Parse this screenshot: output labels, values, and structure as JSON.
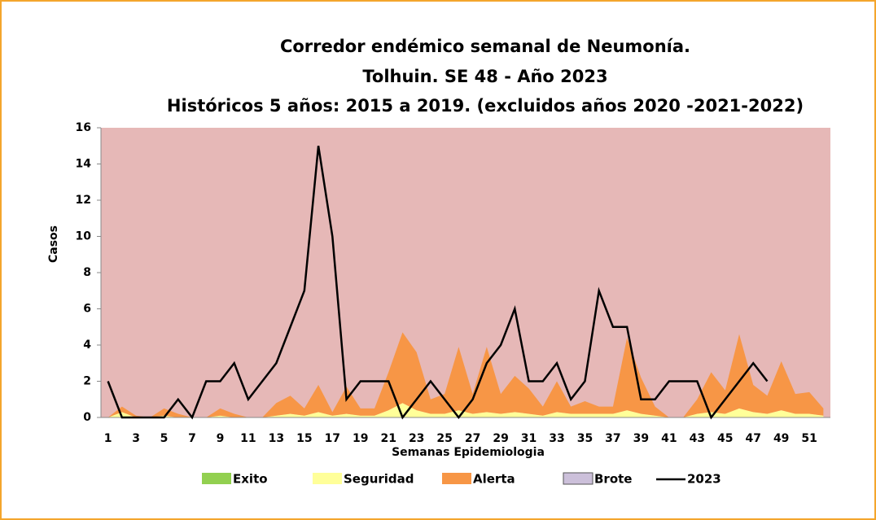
{
  "chart_data": {
    "type": "area",
    "title": [
      "Corredor endémico semanal de Neumonía.",
      "Tolhuin. SE 48 -  Año 2023",
      "Históricos 5 años: 2015 a 2019. (excluidos años 2020 -2021-2022)"
    ],
    "x_label": "Semanas Epidemiologia",
    "y_label": "Casos",
    "categories": [
      "1",
      null,
      "3",
      null,
      "5",
      null,
      "7",
      null,
      "9",
      null,
      "11",
      null,
      "13",
      null,
      "15",
      null,
      "17",
      null,
      "19",
      null,
      "21",
      null,
      "23",
      null,
      "25",
      null,
      "27",
      null,
      "29",
      null,
      "31",
      null,
      "33",
      null,
      "35",
      null,
      "37",
      null,
      "39",
      null,
      "41",
      null,
      "43",
      null,
      "45",
      null,
      "47",
      null,
      "49",
      null,
      "51",
      null
    ],
    "ylim": [
      0,
      16
    ],
    "yticks": [
      0,
      2,
      4,
      6,
      8,
      10,
      12,
      14,
      16
    ],
    "plot_background": "#e6b8b7",
    "stacked": true,
    "legend": "bottom",
    "series": [
      {
        "name": "Exito",
        "type": "area",
        "color": "#92d050",
        "values": [
          0,
          0,
          0,
          0,
          0,
          0,
          0,
          0,
          0,
          0,
          0,
          0,
          0,
          0,
          0,
          0,
          0,
          0,
          0,
          0,
          0,
          0,
          0,
          0,
          0,
          0,
          0,
          0,
          0,
          0,
          0,
          0,
          0,
          0,
          0,
          0,
          0,
          0,
          0,
          0,
          0,
          0,
          0,
          0,
          0,
          0,
          0,
          0,
          0,
          0,
          0,
          0
        ]
      },
      {
        "name": "Seguridad",
        "type": "area",
        "color": "#ffff99",
        "values": [
          0,
          0.3,
          0,
          0,
          0.1,
          0,
          0,
          0,
          0.1,
          0,
          0,
          0,
          0.1,
          0.2,
          0.1,
          0.3,
          0.1,
          0.2,
          0.1,
          0.1,
          0.4,
          0.8,
          0.4,
          0.2,
          0.2,
          0.4,
          0.2,
          0.3,
          0.2,
          0.3,
          0.2,
          0.1,
          0.3,
          0.2,
          0.2,
          0.2,
          0.2,
          0.4,
          0.2,
          0.1,
          0,
          0,
          0.2,
          0.3,
          0.2,
          0.5,
          0.3,
          0.2,
          0.4,
          0.2,
          0.2,
          0.1
        ]
      },
      {
        "name": "Alerta",
        "type": "area",
        "color": "#f79646",
        "values": [
          0,
          0.3,
          0.1,
          0,
          0.4,
          0.2,
          0,
          0,
          0.4,
          0.2,
          0,
          0,
          0.7,
          1,
          0.4,
          1.5,
          0.2,
          1.5,
          0.4,
          0.4,
          2.1,
          3.9,
          3.2,
          0.8,
          1.1,
          3.5,
          1.1,
          3.6,
          1.1,
          2,
          1.4,
          0.5,
          1.7,
          0.4,
          0.7,
          0.4,
          0.4,
          4,
          2,
          0.5,
          0,
          0,
          0.8,
          2.2,
          1.3,
          4.1,
          1.5,
          1,
          2.7,
          1.1,
          1.2,
          0.4
        ]
      },
      {
        "name": "Brote",
        "type": "area",
        "color": "#ccc0da",
        "values": [
          0,
          0,
          0,
          0,
          0,
          0,
          0,
          0,
          0,
          0,
          0,
          0,
          0,
          0,
          0,
          0,
          0,
          0,
          0,
          0,
          0,
          0,
          0,
          0,
          0,
          0,
          0,
          0,
          0,
          0,
          0,
          0,
          0,
          0,
          0,
          0,
          0,
          0,
          0,
          0,
          0,
          0,
          0,
          0,
          0,
          0,
          0,
          0,
          0,
          0,
          0,
          0
        ]
      },
      {
        "name": "2023",
        "type": "line",
        "color": "#000000",
        "values": [
          2,
          0,
          0,
          0,
          0,
          1,
          0,
          2,
          2,
          3,
          1,
          2,
          3,
          5,
          7,
          15,
          10,
          1,
          2,
          2,
          2,
          0,
          1,
          2,
          1,
          0,
          1,
          3,
          4,
          6,
          2,
          2,
          3,
          1,
          2,
          7,
          5,
          5,
          1,
          1,
          2,
          2,
          2,
          0,
          1,
          2,
          3,
          2,
          null,
          null,
          null,
          null
        ]
      }
    ]
  }
}
